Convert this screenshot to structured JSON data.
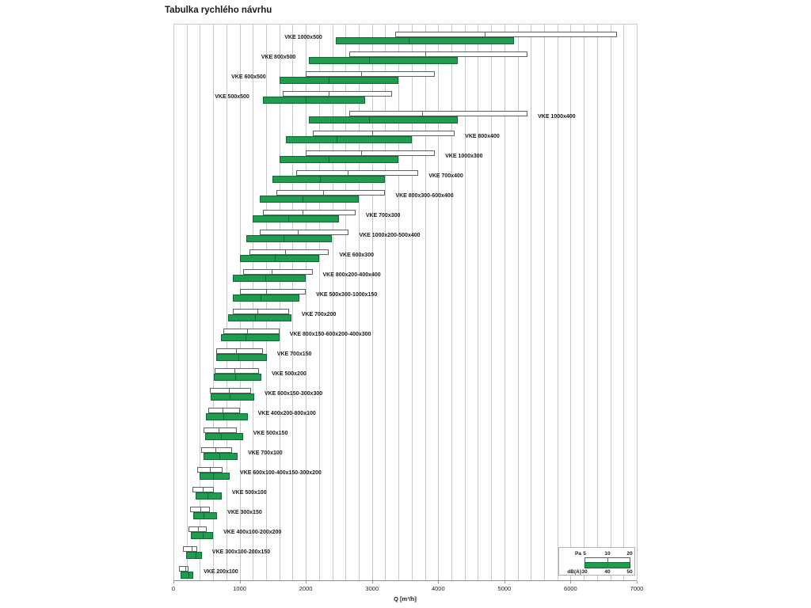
{
  "title": "Tabulka rychlého návrhu",
  "legend": {
    "pa_label": "Pa",
    "pa_ticks": [
      "5",
      "10",
      "20"
    ],
    "dba_label": "dB(A)",
    "dba_ticks": [
      "30",
      "40",
      "50"
    ]
  },
  "colors": {
    "green_fill": "#1f9c4d",
    "green_border": "#0b6b33",
    "white_fill": "#ffffff",
    "white_border": "#606060",
    "gridline": "#c9c9c9",
    "axis": "#909090",
    "text": "#1a1a1a"
  },
  "chart_data": {
    "type": "bar",
    "orientation": "horizontal",
    "title": "Tabulka rychlého návrhu",
    "xlabel": "Q [m³/h]",
    "xlim": [
      0,
      7000
    ],
    "xticks": [
      0,
      1000,
      2000,
      3000,
      4000,
      5000,
      6000,
      7000
    ],
    "grid_step": 200,
    "grid": true,
    "legend_position": "bottom-right",
    "series_meaning": {
      "pa": "Q range for pressure drop 5 / 10 / 20 Pa (white bar, values = [Q@5Pa, Q@10Pa, Q@20Pa])",
      "dba": "Q range for noise 30 / 40 / 50 dB(A) (green bar, values = [Q@30dB, Q@40dB, Q@50dB])"
    },
    "rows": [
      {
        "label": "VKE 1000x500",
        "side": "left",
        "pa": [
          3350,
          4700,
          6700
        ],
        "dba": [
          2450,
          3550,
          5150
        ]
      },
      {
        "label": "VKE 800x500",
        "side": "left",
        "pa": [
          2650,
          3800,
          5350
        ],
        "dba": [
          2050,
          2950,
          4300
        ]
      },
      {
        "label": "VKE 600x500",
        "side": "left",
        "pa": [
          2000,
          2830,
          3950
        ],
        "dba": [
          1600,
          2350,
          3400
        ]
      },
      {
        "label": "VKE 500x500",
        "side": "left",
        "pa": [
          1650,
          2340,
          3300
        ],
        "dba": [
          1350,
          2000,
          2900
        ]
      },
      {
        "label": "VKE 1000x400",
        "side": "right",
        "pa": [
          2650,
          3760,
          5350
        ],
        "dba": [
          2050,
          2960,
          4300
        ]
      },
      {
        "label": "VKE 800x400",
        "side": "right",
        "pa": [
          2100,
          3000,
          4250
        ],
        "dba": [
          1700,
          2470,
          3600
        ]
      },
      {
        "label": "VKE 1000x300",
        "side": "right",
        "pa": [
          2000,
          2830,
          3950
        ],
        "dba": [
          1600,
          2350,
          3400
        ]
      },
      {
        "label": "VKE 700x400",
        "side": "right",
        "pa": [
          1850,
          2630,
          3700
        ],
        "dba": [
          1500,
          2210,
          3200
        ]
      },
      {
        "label": "VKE 800x300-600x400",
        "side": "right",
        "pa": [
          1550,
          2260,
          3200
        ],
        "dba": [
          1300,
          1950,
          2800
        ]
      },
      {
        "label": "VKE 700x300",
        "side": "right",
        "pa": [
          1350,
          1950,
          2750
        ],
        "dba": [
          1200,
          1740,
          2500
        ]
      },
      {
        "label": "VKE 1000x200-500x400",
        "side": "right",
        "pa": [
          1300,
          1880,
          2650
        ],
        "dba": [
          1100,
          1660,
          2400
        ]
      },
      {
        "label": "VKE 600x300",
        "side": "right",
        "pa": [
          1150,
          1690,
          2350
        ],
        "dba": [
          1000,
          1530,
          2200
        ]
      },
      {
        "label": "VKE 800x200-400x400",
        "side": "right",
        "pa": [
          1050,
          1480,
          2100
        ],
        "dba": [
          900,
          1390,
          2000
        ]
      },
      {
        "label": "VKE 500x300-1000x150",
        "side": "right",
        "pa": [
          1000,
          1400,
          2000
        ],
        "dba": [
          900,
          1310,
          1900
        ]
      },
      {
        "label": "VKE 700x200",
        "side": "right",
        "pa": [
          900,
          1270,
          1750
        ],
        "dba": [
          830,
          1230,
          1780
        ]
      },
      {
        "label": "VKE 800x150-600x200-400x300",
        "side": "right",
        "pa": [
          750,
          1110,
          1600
        ],
        "dba": [
          720,
          1090,
          1600
        ]
      },
      {
        "label": "VKE 700x150",
        "side": "right",
        "pa": [
          650,
          940,
          1350
        ],
        "dba": [
          640,
          980,
          1410
        ]
      },
      {
        "label": "VKE 500x200",
        "side": "right",
        "pa": [
          620,
          920,
          1290
        ],
        "dba": [
          615,
          930,
          1330
        ]
      },
      {
        "label": "VKE 600x150-300x300",
        "side": "right",
        "pa": [
          550,
          840,
          1170
        ],
        "dba": [
          560,
          850,
          1220
        ]
      },
      {
        "label": "VKE 400x200-800x100",
        "side": "right",
        "pa": [
          530,
          740,
          1010
        ],
        "dba": [
          490,
          750,
          1120
        ]
      },
      {
        "label": "VKE 500x150",
        "side": "right",
        "pa": [
          460,
          680,
          960
        ],
        "dba": [
          480,
          720,
          1050
        ]
      },
      {
        "label": "VKE 700x100",
        "side": "right",
        "pa": [
          420,
          630,
          890
        ],
        "dba": [
          450,
          690,
          970
        ]
      },
      {
        "label": "VKE 600x100-400x150-300x200",
        "side": "right",
        "pa": [
          360,
          550,
          740
        ],
        "dba": [
          390,
          600,
          850
        ]
      },
      {
        "label": "VKE 500x100",
        "side": "right",
        "pa": [
          290,
          440,
          610
        ],
        "dba": [
          330,
          510,
          730
        ]
      },
      {
        "label": "VKE 300x150",
        "side": "right",
        "pa": [
          250,
          410,
          550
        ],
        "dba": [
          300,
          460,
          660
        ]
      },
      {
        "label": "VKE 400x100-200x200",
        "side": "right",
        "pa": [
          230,
          370,
          500
        ],
        "dba": [
          260,
          440,
          600
        ]
      },
      {
        "label": "VKE 300x100-200x150",
        "side": "right",
        "pa": [
          145,
          270,
          360
        ],
        "dba": [
          195,
          330,
          430
        ]
      },
      {
        "label": "VKE 200x100",
        "side": "right",
        "pa": [
          85,
          180,
          230
        ],
        "dba": [
          110,
          230,
          300
        ]
      }
    ]
  }
}
